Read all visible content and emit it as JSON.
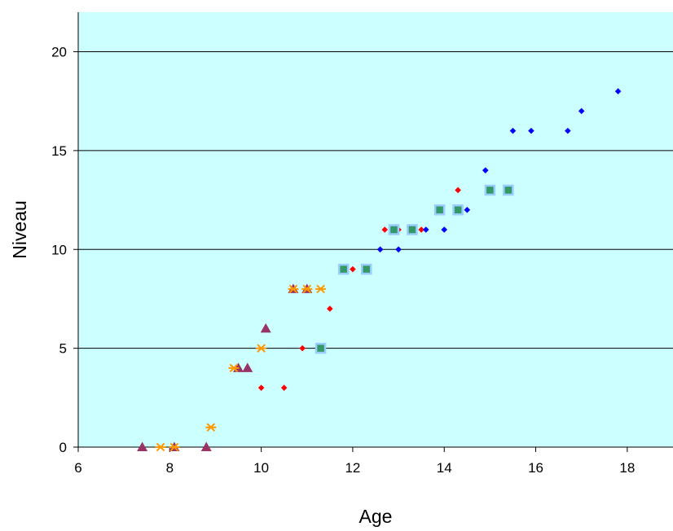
{
  "chart_data": {
    "type": "scatter",
    "title": "",
    "xlabel": "Age",
    "ylabel": "Niveau",
    "xlim": [
      6,
      19
    ],
    "ylim": [
      0,
      22
    ],
    "x_ticks": [
      "6",
      "8",
      "10",
      "12",
      "14",
      "16",
      "18"
    ],
    "y_ticks": [
      "0",
      "5",
      "10",
      "15",
      "20"
    ],
    "grid": "horizontal",
    "legend": "none",
    "plot_background": "#ccffff",
    "series": [
      {
        "marker": "diamond",
        "color": "#0000ff",
        "points": [
          [
            12.6,
            10
          ],
          [
            13.0,
            10
          ],
          [
            13.6,
            11
          ],
          [
            14.0,
            11
          ],
          [
            14.5,
            12
          ],
          [
            14.9,
            14
          ],
          [
            15.5,
            16
          ],
          [
            15.9,
            16
          ],
          [
            16.7,
            16
          ],
          [
            17.0,
            17
          ],
          [
            17.8,
            18
          ]
        ]
      },
      {
        "marker": "diamond",
        "color": "#ff0000",
        "points": [
          [
            10.0,
            3
          ],
          [
            10.5,
            3
          ],
          [
            10.9,
            5
          ],
          [
            11.5,
            7
          ],
          [
            12.0,
            9
          ],
          [
            12.7,
            11
          ],
          [
            13.0,
            11
          ],
          [
            13.5,
            11
          ],
          [
            14.3,
            13
          ]
        ]
      },
      {
        "marker": "square",
        "color": "#339966",
        "edge_color": "#99ccff",
        "points": [
          [
            11.3,
            5
          ],
          [
            11.8,
            9
          ],
          [
            12.3,
            9
          ],
          [
            12.9,
            11
          ],
          [
            13.3,
            11
          ],
          [
            13.9,
            12
          ],
          [
            14.3,
            12
          ],
          [
            15.0,
            13
          ],
          [
            15.4,
            13
          ]
        ]
      },
      {
        "marker": "triangle",
        "color": "#993366",
        "points": [
          [
            7.4,
            0
          ],
          [
            8.1,
            0
          ],
          [
            8.8,
            0
          ],
          [
            9.5,
            4
          ],
          [
            9.7,
            4
          ],
          [
            10.1,
            6
          ],
          [
            10.7,
            8
          ],
          [
            11.0,
            8
          ]
        ]
      },
      {
        "marker": "star",
        "color": "#ff9900",
        "points": [
          [
            7.8,
            0
          ],
          [
            8.1,
            0
          ],
          [
            8.9,
            1
          ],
          [
            9.4,
            4
          ],
          [
            10.0,
            5
          ],
          [
            10.7,
            8
          ],
          [
            11.0,
            8
          ],
          [
            11.3,
            8
          ]
        ]
      }
    ]
  }
}
